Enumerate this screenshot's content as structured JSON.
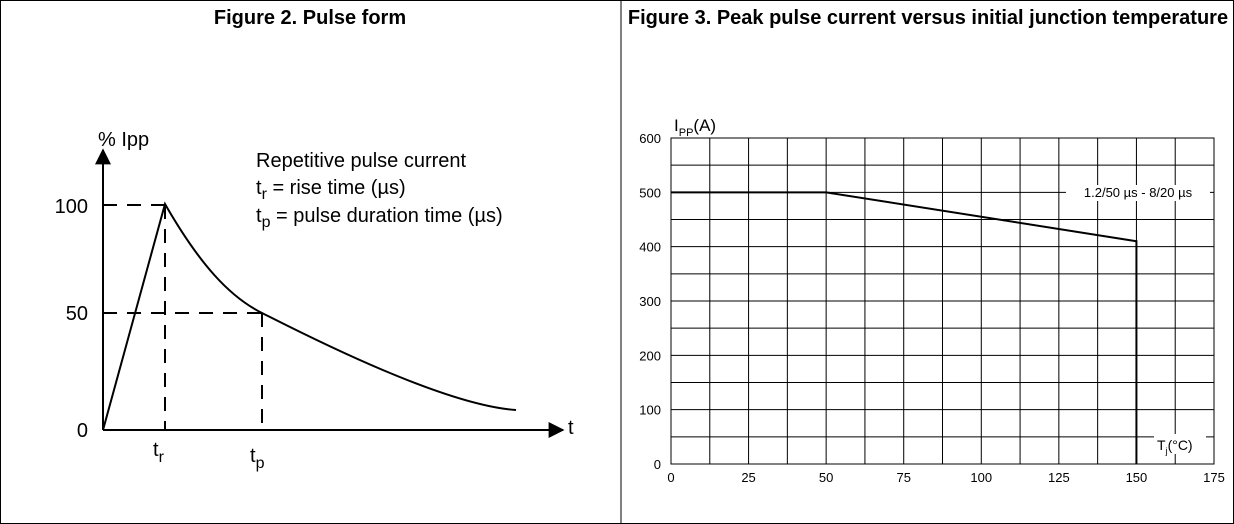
{
  "chart_data": [
    {
      "type": "line",
      "title": "Figure 2. Pulse form",
      "ylabel": "% Ipp",
      "xlabel": "t",
      "y_ticks": [
        "0",
        "50",
        "100"
      ],
      "x_ticks": [
        {
          "main": "t",
          "sub": "r"
        },
        {
          "main": "t",
          "sub": "p"
        }
      ],
      "annotation": {
        "heading": "Repetitive pulse current",
        "lines": [
          {
            "main": "t",
            "sub": "r",
            "rest": " = rise time (µs)"
          },
          {
            "main": "t",
            "sub": "p",
            "rest": " = pulse duration time (µs)"
          }
        ]
      },
      "series": [
        {
          "x": [
            "0",
            "t_r",
            "t_p"
          ],
          "values": [
            0,
            100,
            50
          ]
        }
      ]
    },
    {
      "type": "line",
      "title": "Figure 3. Peak pulse current versus initial junction temperature",
      "ylabel": {
        "main": "I",
        "sub": "PP",
        "rest": "(A)"
      },
      "xlabel": {
        "main": "T",
        "sub": "j",
        "rest": "(°C)"
      },
      "xlim": [
        0,
        175
      ],
      "ylim": [
        0,
        600
      ],
      "x_ticks": [
        "0",
        "25",
        "50",
        "75",
        "100",
        "125",
        "150",
        "175"
      ],
      "y_ticks": [
        "0",
        "100",
        "200",
        "300",
        "400",
        "500",
        "600"
      ],
      "grid": true,
      "series": [
        {
          "name": "1.2/50 µs - 8/20 µs",
          "x": [
            0,
            50,
            150,
            150
          ],
          "values": [
            500,
            500,
            410,
            0
          ]
        }
      ]
    }
  ]
}
